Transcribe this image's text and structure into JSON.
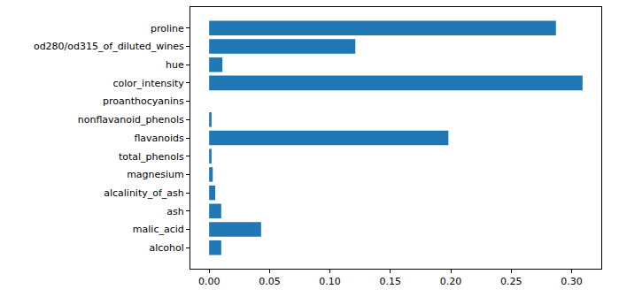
{
  "chart_data": {
    "type": "bar",
    "orientation": "horizontal",
    "categories": [
      "alcohol",
      "malic_acid",
      "ash",
      "alcalinity_of_ash",
      "magnesium",
      "total_phenols",
      "flavanoids",
      "nonflavanoid_phenols",
      "proanthocyanins",
      "color_intensity",
      "hue",
      "od280/od315_of_diluted_wines",
      "proline"
    ],
    "values": [
      0.01,
      0.043,
      0.01,
      0.005,
      0.003,
      0.002,
      0.198,
      0.002,
      0.0,
      0.309,
      0.011,
      0.121,
      0.287
    ],
    "color": "#1f77b4",
    "xlim": [
      -0.0155,
      0.3245
    ],
    "xticks": [
      {
        "value": 0,
        "label": "0.00"
      },
      {
        "value": 0.05,
        "label": "0.05"
      },
      {
        "value": 0.1,
        "label": "0.10"
      },
      {
        "value": 0.15,
        "label": "0.15"
      },
      {
        "value": 0.2,
        "label": "0.20"
      },
      {
        "value": 0.25,
        "label": "0.25"
      },
      {
        "value": 0.3,
        "label": "0.30"
      }
    ],
    "grid": false
  }
}
